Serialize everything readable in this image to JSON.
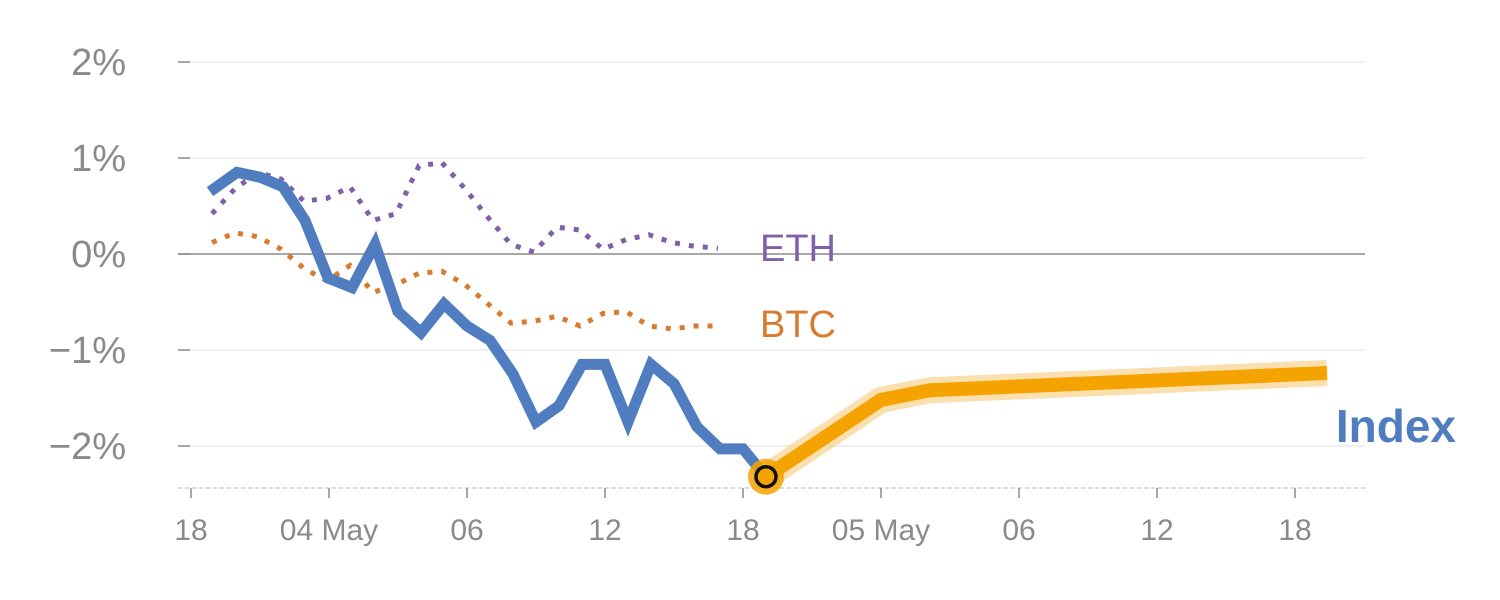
{
  "chart_data": {
    "type": "line",
    "title": "",
    "xlabel": "",
    "ylabel": "",
    "x_ticks": [
      "18",
      "04 May",
      "06",
      "12",
      "18",
      "05 May",
      "06",
      "12",
      "18"
    ],
    "y_ticks": [
      "2%",
      "1%",
      "0%",
      "−1%",
      "−2%"
    ],
    "ylim": [
      -2.45,
      2.0
    ],
    "grid": true,
    "series": [
      {
        "name": "ETH",
        "style": "dotted",
        "color": "#8060a8",
        "values": [
          0.42,
          0.68,
          0.85,
          0.78,
          0.55,
          0.58,
          0.7,
          0.35,
          0.42,
          0.92,
          0.95,
          0.68,
          0.38,
          0.1,
          0.02,
          0.28,
          0.25,
          0.05,
          0.15,
          0.2,
          0.12,
          0.08,
          0.06
        ]
      },
      {
        "name": "BTC",
        "style": "dotted",
        "color": "#d97b2e",
        "values": [
          0.12,
          0.22,
          0.18,
          0.05,
          -0.15,
          -0.28,
          -0.12,
          -0.4,
          -0.32,
          -0.2,
          -0.18,
          -0.32,
          -0.52,
          -0.72,
          -0.7,
          -0.65,
          -0.75,
          -0.62,
          -0.6,
          -0.75,
          -0.78,
          -0.75,
          -0.75
        ]
      },
      {
        "name": "Index",
        "style": "solid",
        "color": "#4f7dbf",
        "values": [
          0.65,
          0.85,
          0.8,
          0.7,
          0.35,
          -0.25,
          -0.35,
          0.1,
          -0.6,
          -0.82,
          -0.52,
          -0.75,
          -0.9,
          -1.25,
          -1.75,
          -1.58,
          -1.15,
          -1.15,
          -1.75,
          -1.15,
          -1.35,
          -1.8,
          -2.03,
          -2.03,
          -2.32
        ]
      },
      {
        "name": "Index",
        "style": "highlight",
        "color": "#f5a300",
        "values": [
          -2.32,
          -1.52,
          -1.42,
          -1.24
        ]
      }
    ]
  }
}
